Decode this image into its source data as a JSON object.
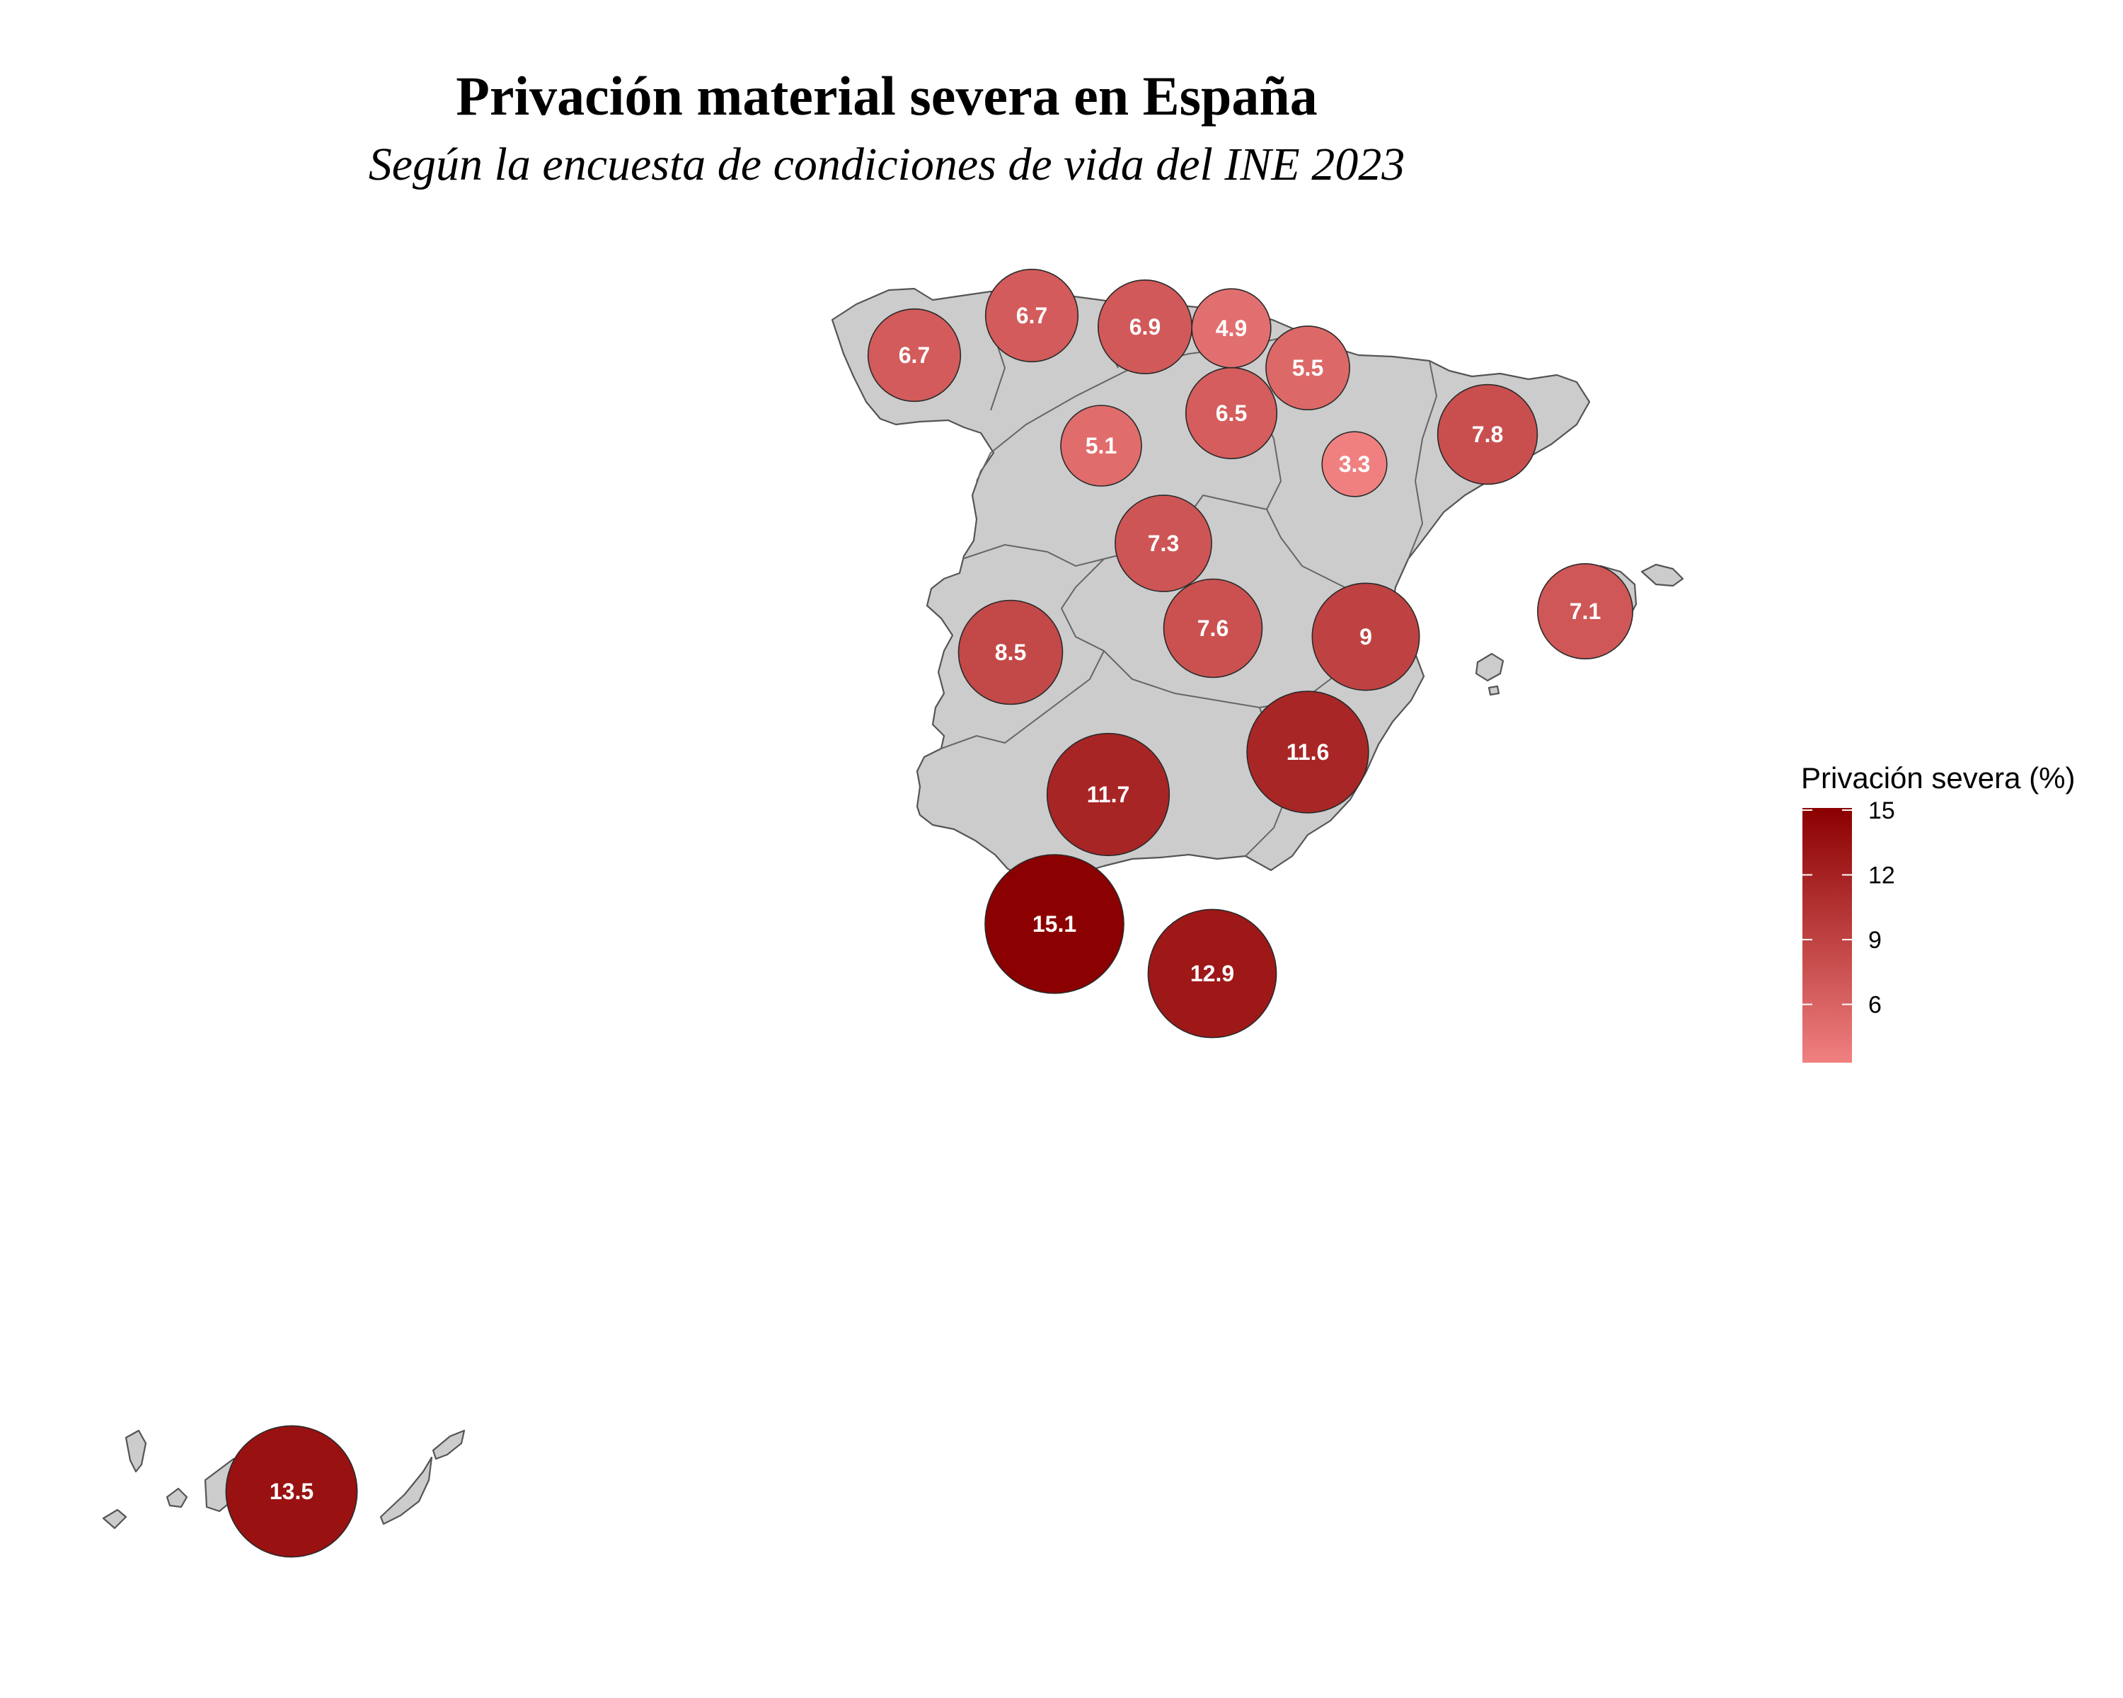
{
  "title": "Privación material severa en España",
  "subtitle": "Según la encuesta de condiciones de vida del INE 2023",
  "legend": {
    "title": "Privación severa (%)",
    "ticks": [
      15,
      12,
      9,
      6
    ],
    "min": 3.3,
    "max": 15.1,
    "color_low": "#f08080",
    "color_high": "#8b0000"
  },
  "map": {
    "land_color": "#cccccc",
    "border_color": "#555555"
  },
  "chart_data": {
    "type": "proportional-symbol map",
    "values": [
      6.7,
      6.7,
      6.9,
      4.9,
      5.5,
      6.5,
      5.1,
      3.3,
      7.8,
      7.3,
      7.6,
      8.5,
      9,
      7.1,
      11.6,
      11.7,
      15.1,
      12.9,
      13.5
    ]
  }
}
